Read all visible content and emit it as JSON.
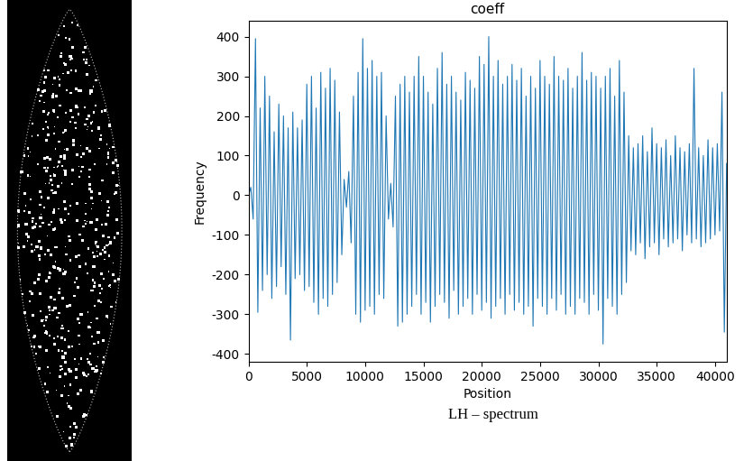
{
  "chart_data": {
    "type": "line",
    "title": "coeff",
    "x_label": "Position",
    "y_label": "Frequency",
    "caption": "LH – spectrum",
    "x": [
      0,
      200,
      400,
      600,
      800,
      1000,
      1200,
      1400,
      1600,
      1800,
      2000,
      2200,
      2400,
      2600,
      2800,
      3000,
      3200,
      3400,
      3600,
      3800,
      4000,
      4200,
      4400,
      4600,
      4800,
      5000,
      5200,
      5400,
      5600,
      5800,
      6000,
      6200,
      6400,
      6600,
      6800,
      7000,
      7200,
      7400,
      7600,
      7800,
      8000,
      8200,
      8400,
      8600,
      8800,
      9000,
      9200,
      9400,
      9600,
      9800,
      10000,
      10200,
      10400,
      10600,
      10800,
      11000,
      11200,
      11400,
      11600,
      11800,
      12000,
      12200,
      12400,
      12600,
      12800,
      13000,
      13200,
      13400,
      13600,
      13800,
      14000,
      14200,
      14400,
      14600,
      14800,
      15000,
      15200,
      15400,
      15600,
      15800,
      16000,
      16200,
      16400,
      16600,
      16800,
      17000,
      17200,
      17400,
      17600,
      17800,
      18000,
      18200,
      18400,
      18600,
      18800,
      19000,
      19200,
      19400,
      19600,
      19800,
      20000,
      20200,
      20400,
      20600,
      20800,
      21000,
      21200,
      21400,
      21600,
      21800,
      22000,
      22200,
      22400,
      22600,
      22800,
      23000,
      23200,
      23400,
      23600,
      23800,
      24000,
      24200,
      24400,
      24600,
      24800,
      25000,
      25200,
      25400,
      25600,
      25800,
      26000,
      26200,
      26400,
      26600,
      26800,
      27000,
      27200,
      27400,
      27600,
      27800,
      28000,
      28200,
      28400,
      28600,
      28800,
      29000,
      29200,
      29400,
      29600,
      29800,
      30000,
      30200,
      30400,
      30600,
      30800,
      31000,
      31200,
      31400,
      31600,
      31800,
      32000,
      32200,
      32400,
      32600,
      32800,
      33000,
      33200,
      33400,
      33600,
      33800,
      34000,
      34200,
      34400,
      34600,
      34800,
      35000,
      35200,
      35400,
      35600,
      35800,
      36000,
      36200,
      36400,
      36600,
      36800,
      37000,
      37200,
      37400,
      37600,
      37800,
      38000,
      38200,
      38400,
      38600,
      38800,
      39000,
      39200,
      39400,
      39600,
      39800,
      40000,
      40200,
      40400,
      40600,
      40800,
      41000
    ],
    "values": [
      0,
      20,
      -60,
      395,
      -295,
      220,
      -240,
      300,
      -200,
      250,
      -260,
      160,
      -230,
      230,
      -180,
      200,
      -250,
      170,
      -365,
      210,
      -210,
      170,
      -200,
      190,
      -240,
      280,
      -230,
      300,
      -270,
      220,
      -300,
      310,
      -260,
      270,
      -280,
      320,
      -250,
      290,
      -220,
      210,
      -150,
      40,
      -30,
      60,
      -120,
      250,
      -300,
      310,
      -320,
      395,
      -290,
      320,
      -280,
      340,
      -300,
      300,
      -250,
      310,
      -260,
      200,
      -60,
      30,
      -80,
      250,
      -330,
      280,
      -320,
      300,
      -300,
      260,
      -280,
      300,
      -250,
      350,
      -300,
      300,
      -270,
      260,
      -320,
      230,
      -280,
      320,
      -250,
      360,
      -270,
      280,
      -310,
      300,
      -240,
      260,
      -300,
      240,
      -280,
      310,
      -260,
      290,
      -300,
      270,
      -250,
      350,
      -290,
      330,
      -270,
      400,
      -310,
      300,
      -280,
      340,
      -260,
      280,
      -300,
      300,
      -250,
      330,
      -290,
      290,
      -270,
      320,
      -300,
      250,
      -280,
      300,
      -330,
      270,
      -260,
      340,
      -280,
      300,
      -300,
      280,
      -260,
      350,
      -290,
      300,
      -250,
      290,
      -300,
      320,
      -280,
      270,
      -300,
      300,
      -260,
      360,
      -270,
      290,
      -300,
      310,
      -250,
      300,
      -290,
      270,
      -375,
      300,
      -260,
      320,
      -280,
      250,
      -300,
      340,
      -250,
      260,
      -220,
      150,
      -140,
      120,
      -150,
      130,
      -120,
      150,
      -160,
      110,
      -130,
      170,
      -120,
      130,
      -150,
      120,
      -110,
      140,
      -130,
      100,
      -120,
      150,
      -110,
      120,
      -140,
      110,
      -100,
      130,
      -120,
      320,
      -110,
      120,
      -130,
      100,
      -120,
      140,
      -110,
      120,
      -100,
      130,
      -90,
      260,
      -345,
      80
    ],
    "color": "#1f77b4",
    "xlim": [
      0,
      41000
    ],
    "xticks": [
      0,
      5000,
      10000,
      15000,
      20000,
      25000,
      30000,
      35000,
      40000
    ],
    "ylim": [
      -420,
      440
    ],
    "yticks": [
      -400,
      -300,
      -200,
      -100,
      0,
      100,
      200,
      300,
      400
    ],
    "grid": false
  }
}
